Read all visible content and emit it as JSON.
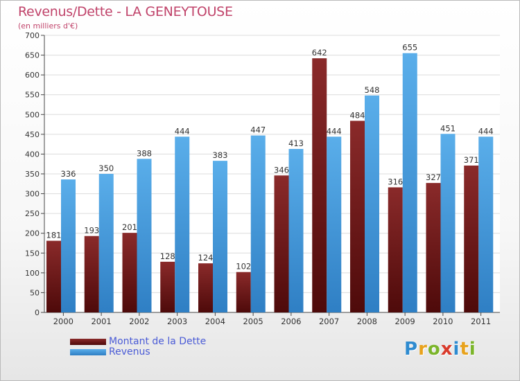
{
  "title": "Revenus/Dette - LA GENEYTOUSE",
  "subtitle": "(en milliers d'€)",
  "logo": {
    "letters": [
      "P",
      "r",
      "o",
      "x",
      "i",
      "t",
      "i"
    ]
  },
  "colors": {
    "dette_top": "#8a2a2a",
    "dette_bottom": "#4e0a0a",
    "revenus_top": "#5aaeea",
    "revenus_bottom": "#2f7fc4",
    "title": "#c0436a",
    "legend_text": "#4a5bd6"
  },
  "chart_data": {
    "type": "bar",
    "title": "Revenus/Dette - LA GENEYTOUSE",
    "subtitle": "(en milliers d'€)",
    "categories": [
      "2000",
      "2001",
      "2002",
      "2003",
      "2004",
      "2005",
      "2006",
      "2007",
      "2008",
      "2009",
      "2010",
      "2011"
    ],
    "series": [
      {
        "name": "Montant de la Dette",
        "values": [
          181,
          193,
          201,
          128,
          124,
          102,
          346,
          642,
          484,
          316,
          327,
          371
        ]
      },
      {
        "name": "Revenus",
        "values": [
          336,
          350,
          388,
          444,
          383,
          447,
          413,
          444,
          548,
          655,
          451,
          444
        ]
      }
    ],
    "ylim": [
      0,
      700
    ],
    "yticks": [
      0,
      50,
      100,
      150,
      200,
      250,
      300,
      350,
      400,
      450,
      500,
      550,
      600,
      650,
      700
    ],
    "grid": true,
    "legend": "bottom-left"
  }
}
